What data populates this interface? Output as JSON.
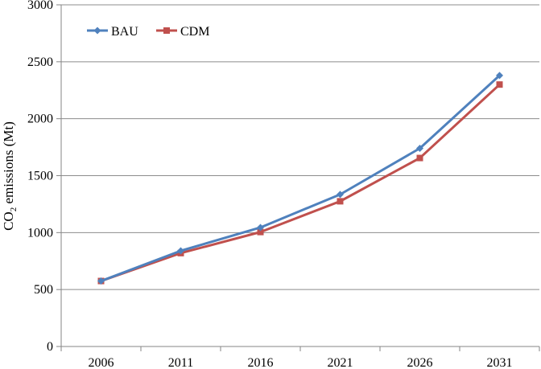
{
  "chart_data": {
    "type": "line",
    "x": [
      "2006",
      "2011",
      "2016",
      "2021",
      "2026",
      "2031"
    ],
    "series": [
      {
        "name": "BAU",
        "values": [
          575,
          840,
          1045,
          1335,
          1740,
          2380
        ],
        "color": "#4F81BD",
        "marker": "diamond"
      },
      {
        "name": "CDM",
        "values": [
          575,
          820,
          1005,
          1275,
          1655,
          2300
        ],
        "color": "#C0504D",
        "marker": "square"
      }
    ],
    "ylabel_main": "CO",
    "ylabel_sub": "2",
    "ylabel_rest": " emissions (Mt)",
    "ylim": [
      0,
      3000
    ],
    "yticks": [
      "0",
      "500",
      "1000",
      "1500",
      "2000",
      "2500",
      "3000"
    ],
    "grid": true,
    "legend_position": "top-left",
    "gridline_color": "#8C8C8C",
    "axis_color": "#868686"
  }
}
